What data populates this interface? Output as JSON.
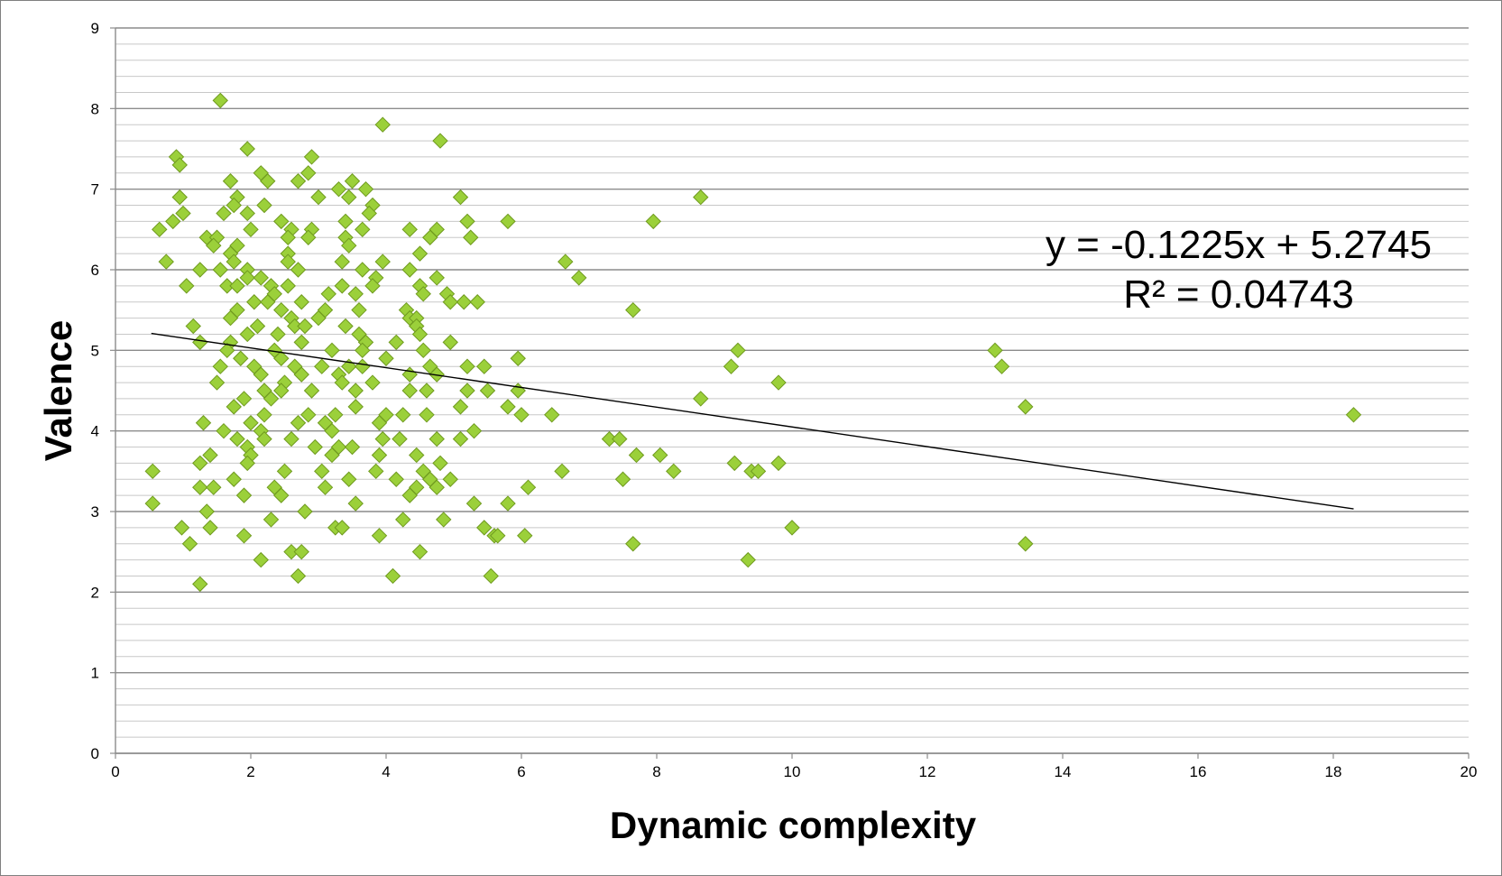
{
  "chart_data": {
    "type": "scatter",
    "title": "",
    "xlabel": "Dynamic complexity",
    "ylabel": "Valence",
    "xlim": [
      0,
      20
    ],
    "ylim": [
      0,
      9
    ],
    "x_ticks": [
      "0",
      "2",
      "4",
      "6",
      "8",
      "10",
      "12",
      "14",
      "16",
      "18",
      "20"
    ],
    "y_ticks": [
      "0",
      "1",
      "2",
      "3",
      "4",
      "5",
      "6",
      "7",
      "8",
      "9"
    ],
    "grid": "horizontal major and minor gridlines",
    "marker": "diamond",
    "marker_color": "#9bd03a",
    "marker_edge": "#6f9a1f",
    "trendline": {
      "type": "linear",
      "slope": -0.1225,
      "intercept": 5.2745,
      "x_range": [
        0.53,
        18.3
      ]
    },
    "annotations": {
      "equation": "y = -0.1225x + 5.2745",
      "r_squared": "R² = 0.04743"
    },
    "points": [
      [
        1.55,
        8.1
      ],
      [
        3.95,
        7.8
      ],
      [
        4.8,
        7.6
      ],
      [
        1.95,
        7.5
      ],
      [
        2.9,
        7.4
      ],
      [
        0.9,
        7.4
      ],
      [
        0.95,
        7.3
      ],
      [
        2.15,
        7.2
      ],
      [
        2.85,
        7.2
      ],
      [
        1.7,
        7.1
      ],
      [
        2.25,
        7.1
      ],
      [
        2.7,
        7.1
      ],
      [
        3.5,
        7.1
      ],
      [
        3.3,
        7.0
      ],
      [
        3.7,
        7.0
      ],
      [
        0.95,
        6.9
      ],
      [
        1.8,
        6.9
      ],
      [
        3.0,
        6.9
      ],
      [
        3.45,
        6.9
      ],
      [
        5.1,
        6.9
      ],
      [
        8.65,
        6.9
      ],
      [
        1.75,
        6.8
      ],
      [
        2.2,
        6.8
      ],
      [
        3.8,
        6.8
      ],
      [
        1.0,
        6.7
      ],
      [
        1.6,
        6.7
      ],
      [
        1.95,
        6.7
      ],
      [
        3.75,
        6.7
      ],
      [
        0.85,
        6.6
      ],
      [
        2.45,
        6.6
      ],
      [
        3.4,
        6.6
      ],
      [
        5.2,
        6.6
      ],
      [
        5.8,
        6.6
      ],
      [
        7.95,
        6.6
      ],
      [
        0.65,
        6.5
      ],
      [
        2.0,
        6.5
      ],
      [
        2.6,
        6.5
      ],
      [
        2.9,
        6.5
      ],
      [
        3.65,
        6.5
      ],
      [
        4.35,
        6.5
      ],
      [
        4.75,
        6.5
      ],
      [
        1.35,
        6.4
      ],
      [
        1.5,
        6.4
      ],
      [
        2.55,
        6.4
      ],
      [
        2.85,
        6.4
      ],
      [
        3.4,
        6.4
      ],
      [
        5.25,
        6.4
      ],
      [
        4.65,
        6.4
      ],
      [
        1.45,
        6.3
      ],
      [
        1.8,
        6.3
      ],
      [
        3.45,
        6.3
      ],
      [
        1.7,
        6.2
      ],
      [
        2.55,
        6.2
      ],
      [
        4.5,
        6.2
      ],
      [
        0.75,
        6.1
      ],
      [
        1.75,
        6.1
      ],
      [
        2.55,
        6.1
      ],
      [
        3.35,
        6.1
      ],
      [
        3.95,
        6.1
      ],
      [
        6.65,
        6.1
      ],
      [
        1.55,
        6.0
      ],
      [
        1.95,
        6.0
      ],
      [
        2.7,
        6.0
      ],
      [
        3.65,
        6.0
      ],
      [
        4.35,
        6.0
      ],
      [
        1.25,
        6.0
      ],
      [
        1.95,
        5.9
      ],
      [
        2.15,
        5.9
      ],
      [
        3.85,
        5.9
      ],
      [
        4.75,
        5.9
      ],
      [
        6.85,
        5.9
      ],
      [
        1.05,
        5.8
      ],
      [
        1.65,
        5.8
      ],
      [
        1.8,
        5.8
      ],
      [
        2.3,
        5.8
      ],
      [
        2.55,
        5.8
      ],
      [
        3.35,
        5.8
      ],
      [
        3.8,
        5.8
      ],
      [
        4.5,
        5.8
      ],
      [
        2.35,
        5.7
      ],
      [
        3.15,
        5.7
      ],
      [
        3.55,
        5.7
      ],
      [
        4.55,
        5.7
      ],
      [
        4.9,
        5.7
      ],
      [
        2.05,
        5.6
      ],
      [
        2.25,
        5.6
      ],
      [
        2.75,
        5.6
      ],
      [
        5.15,
        5.6
      ],
      [
        5.35,
        5.6
      ],
      [
        4.95,
        5.6
      ],
      [
        1.8,
        5.5
      ],
      [
        2.45,
        5.5
      ],
      [
        3.1,
        5.5
      ],
      [
        3.6,
        5.5
      ],
      [
        4.3,
        5.5
      ],
      [
        7.65,
        5.5
      ],
      [
        1.7,
        5.4
      ],
      [
        2.6,
        5.4
      ],
      [
        3.0,
        5.4
      ],
      [
        4.35,
        5.4
      ],
      [
        4.45,
        5.4
      ],
      [
        1.15,
        5.3
      ],
      [
        2.1,
        5.3
      ],
      [
        2.65,
        5.3
      ],
      [
        2.8,
        5.3
      ],
      [
        3.4,
        5.3
      ],
      [
        4.45,
        5.3
      ],
      [
        1.95,
        5.2
      ],
      [
        2.4,
        5.2
      ],
      [
        3.6,
        5.2
      ],
      [
        4.5,
        5.2
      ],
      [
        1.25,
        5.1
      ],
      [
        1.7,
        5.1
      ],
      [
        2.75,
        5.1
      ],
      [
        3.7,
        5.1
      ],
      [
        4.15,
        5.1
      ],
      [
        4.95,
        5.1
      ],
      [
        1.65,
        5.0
      ],
      [
        2.35,
        5.0
      ],
      [
        3.2,
        5.0
      ],
      [
        3.65,
        5.0
      ],
      [
        4.55,
        5.0
      ],
      [
        9.2,
        5.0
      ],
      [
        13.0,
        5.0
      ],
      [
        1.85,
        4.9
      ],
      [
        2.45,
        4.9
      ],
      [
        4.0,
        4.9
      ],
      [
        5.95,
        4.9
      ],
      [
        1.55,
        4.8
      ],
      [
        2.05,
        4.8
      ],
      [
        2.65,
        4.8
      ],
      [
        3.05,
        4.8
      ],
      [
        3.45,
        4.8
      ],
      [
        3.65,
        4.8
      ],
      [
        4.65,
        4.8
      ],
      [
        5.2,
        4.8
      ],
      [
        5.45,
        4.8
      ],
      [
        9.1,
        4.8
      ],
      [
        13.1,
        4.8
      ],
      [
        2.15,
        4.7
      ],
      [
        2.75,
        4.7
      ],
      [
        3.3,
        4.7
      ],
      [
        4.35,
        4.7
      ],
      [
        4.75,
        4.7
      ],
      [
        1.5,
        4.6
      ],
      [
        2.5,
        4.6
      ],
      [
        3.35,
        4.6
      ],
      [
        3.8,
        4.6
      ],
      [
        9.8,
        4.6
      ],
      [
        2.2,
        4.5
      ],
      [
        2.45,
        4.5
      ],
      [
        2.9,
        4.5
      ],
      [
        3.55,
        4.5
      ],
      [
        4.35,
        4.5
      ],
      [
        4.6,
        4.5
      ],
      [
        5.2,
        4.5
      ],
      [
        5.5,
        4.5
      ],
      [
        5.95,
        4.5
      ],
      [
        1.9,
        4.4
      ],
      [
        2.3,
        4.4
      ],
      [
        8.65,
        4.4
      ],
      [
        1.75,
        4.3
      ],
      [
        3.55,
        4.3
      ],
      [
        5.1,
        4.3
      ],
      [
        5.8,
        4.3
      ],
      [
        13.45,
        4.3
      ],
      [
        2.2,
        4.2
      ],
      [
        2.85,
        4.2
      ],
      [
        3.25,
        4.2
      ],
      [
        4.0,
        4.2
      ],
      [
        4.25,
        4.2
      ],
      [
        4.6,
        4.2
      ],
      [
        6.0,
        4.2
      ],
      [
        6.45,
        4.2
      ],
      [
        18.3,
        4.2
      ],
      [
        1.3,
        4.1
      ],
      [
        2.0,
        4.1
      ],
      [
        2.7,
        4.1
      ],
      [
        3.1,
        4.1
      ],
      [
        3.9,
        4.1
      ],
      [
        1.6,
        4.0
      ],
      [
        2.15,
        4.0
      ],
      [
        3.2,
        4.0
      ],
      [
        5.3,
        4.0
      ],
      [
        1.8,
        3.9
      ],
      [
        2.2,
        3.9
      ],
      [
        2.6,
        3.9
      ],
      [
        3.95,
        3.9
      ],
      [
        4.2,
        3.9
      ],
      [
        4.75,
        3.9
      ],
      [
        5.1,
        3.9
      ],
      [
        7.3,
        3.9
      ],
      [
        7.45,
        3.9
      ],
      [
        1.95,
        3.8
      ],
      [
        2.95,
        3.8
      ],
      [
        3.3,
        3.8
      ],
      [
        3.5,
        3.8
      ],
      [
        1.4,
        3.7
      ],
      [
        2.0,
        3.7
      ],
      [
        3.2,
        3.7
      ],
      [
        3.9,
        3.7
      ],
      [
        4.45,
        3.7
      ],
      [
        7.7,
        3.7
      ],
      [
        8.05,
        3.7
      ],
      [
        1.25,
        3.6
      ],
      [
        1.95,
        3.6
      ],
      [
        4.8,
        3.6
      ],
      [
        9.15,
        3.6
      ],
      [
        9.8,
        3.6
      ],
      [
        0.55,
        3.5
      ],
      [
        2.5,
        3.5
      ],
      [
        3.05,
        3.5
      ],
      [
        3.85,
        3.5
      ],
      [
        4.55,
        3.5
      ],
      [
        6.6,
        3.5
      ],
      [
        8.25,
        3.5
      ],
      [
        9.4,
        3.5
      ],
      [
        9.5,
        3.5
      ],
      [
        1.75,
        3.4
      ],
      [
        3.45,
        3.4
      ],
      [
        4.15,
        3.4
      ],
      [
        4.65,
        3.4
      ],
      [
        4.95,
        3.4
      ],
      [
        7.5,
        3.4
      ],
      [
        1.25,
        3.3
      ],
      [
        1.45,
        3.3
      ],
      [
        2.35,
        3.3
      ],
      [
        3.1,
        3.3
      ],
      [
        4.45,
        3.3
      ],
      [
        4.75,
        3.3
      ],
      [
        6.1,
        3.3
      ],
      [
        1.9,
        3.2
      ],
      [
        2.45,
        3.2
      ],
      [
        4.35,
        3.2
      ],
      [
        0.55,
        3.1
      ],
      [
        3.55,
        3.1
      ],
      [
        5.3,
        3.1
      ],
      [
        5.8,
        3.1
      ],
      [
        1.35,
        3.0
      ],
      [
        2.8,
        3.0
      ],
      [
        2.3,
        2.9
      ],
      [
        4.25,
        2.9
      ],
      [
        4.85,
        2.9
      ],
      [
        0.98,
        2.8
      ],
      [
        1.4,
        2.8
      ],
      [
        3.25,
        2.8
      ],
      [
        3.35,
        2.8
      ],
      [
        5.45,
        2.8
      ],
      [
        10.0,
        2.8
      ],
      [
        1.9,
        2.7
      ],
      [
        3.9,
        2.7
      ],
      [
        5.6,
        2.7
      ],
      [
        5.65,
        2.7
      ],
      [
        6.05,
        2.7
      ],
      [
        1.1,
        2.6
      ],
      [
        7.65,
        2.6
      ],
      [
        13.45,
        2.6
      ],
      [
        2.6,
        2.5
      ],
      [
        2.75,
        2.5
      ],
      [
        4.5,
        2.5
      ],
      [
        2.15,
        2.4
      ],
      [
        9.35,
        2.4
      ],
      [
        2.7,
        2.2
      ],
      [
        4.1,
        2.2
      ],
      [
        5.55,
        2.2
      ],
      [
        1.25,
        2.1
      ]
    ]
  }
}
